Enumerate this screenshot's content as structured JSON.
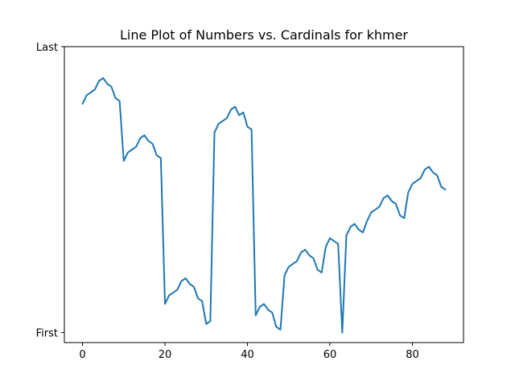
{
  "chart_data": {
    "type": "line",
    "title": "Line Plot of Numbers vs. Cardinals for khmer",
    "xlabel": "",
    "ylabel": "",
    "xlim": [
      -4.4,
      92.4
    ],
    "ylim": [
      -0.035,
      1.0
    ],
    "grid": false,
    "line_color": "#1f77b4",
    "x_ticks": [
      0,
      20,
      40,
      60,
      80
    ],
    "x_tick_labels": [
      "0",
      "20",
      "40",
      "60",
      "80"
    ],
    "y_ticks": [
      0,
      1
    ],
    "y_tick_labels": [
      "First",
      "Last"
    ],
    "series": [
      {
        "x": [
          0,
          1,
          2,
          3,
          4,
          5,
          6,
          7,
          8,
          9,
          10,
          11,
          12,
          13,
          14,
          15,
          16,
          17,
          18,
          19,
          20,
          21,
          22,
          23,
          24,
          25,
          26,
          27,
          28,
          29,
          30,
          31,
          32,
          33,
          34,
          35,
          36,
          37,
          38,
          39,
          40,
          41,
          42,
          43,
          44,
          45,
          46,
          47,
          48,
          49,
          50,
          51,
          52,
          53,
          54,
          55,
          56,
          57,
          58,
          59,
          60,
          61,
          62,
          63,
          64,
          65,
          66,
          67,
          68,
          69,
          70,
          71,
          72,
          73,
          74,
          75,
          76,
          77,
          78,
          79,
          80,
          81,
          82,
          83,
          84,
          85,
          86,
          87,
          88
        ],
        "values": [
          0.8,
          0.83,
          0.84,
          0.85,
          0.88,
          0.89,
          0.87,
          0.86,
          0.82,
          0.81,
          0.6,
          0.63,
          0.64,
          0.65,
          0.68,
          0.69,
          0.67,
          0.66,
          0.62,
          0.61,
          0.1,
          0.13,
          0.14,
          0.15,
          0.18,
          0.19,
          0.17,
          0.16,
          0.12,
          0.11,
          0.03,
          0.04,
          0.7,
          0.73,
          0.74,
          0.75,
          0.78,
          0.79,
          0.76,
          0.77,
          0.72,
          0.71,
          0.06,
          0.09,
          0.1,
          0.08,
          0.07,
          0.02,
          0.01,
          0.2,
          0.23,
          0.24,
          0.25,
          0.28,
          0.29,
          0.27,
          0.26,
          0.22,
          0.21,
          0.3,
          0.33,
          0.32,
          0.31,
          0.0,
          0.34,
          0.37,
          0.38,
          0.36,
          0.35,
          0.39,
          0.42,
          0.43,
          0.44,
          0.47,
          0.48,
          0.46,
          0.45,
          0.41,
          0.4,
          0.49,
          0.52,
          0.53,
          0.54,
          0.57,
          0.58,
          0.56,
          0.55,
          0.51,
          0.5
        ]
      }
    ]
  }
}
